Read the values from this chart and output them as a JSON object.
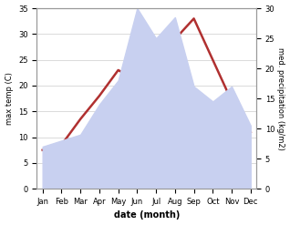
{
  "months": [
    "Jan",
    "Feb",
    "Mar",
    "Apr",
    "May",
    "Jun",
    "Jul",
    "Aug",
    "Sep",
    "Oct",
    "Nov",
    "Dec"
  ],
  "temp": [
    7.5,
    8.5,
    13.5,
    18.0,
    23.0,
    21.0,
    25.5,
    29.0,
    33.0,
    25.0,
    17.0,
    11.0
  ],
  "precip": [
    7.0,
    8.0,
    9.0,
    14.0,
    18.0,
    30.0,
    25.0,
    28.5,
    17.0,
    14.5,
    17.0,
    10.5
  ],
  "temp_color": "#b03030",
  "precip_fill_color": "#c8d0f0",
  "temp_ylim": [
    0,
    35
  ],
  "precip_ylim": [
    0,
    30
  ],
  "temp_yticks": [
    0,
    5,
    10,
    15,
    20,
    25,
    30,
    35
  ],
  "precip_yticks": [
    0,
    5,
    10,
    15,
    20,
    25,
    30
  ],
  "xlabel": "date (month)",
  "ylabel_left": "max temp (C)",
  "ylabel_right": "med. precipitation (kg/m2)",
  "background_color": "#ffffff",
  "line_width": 1.8
}
